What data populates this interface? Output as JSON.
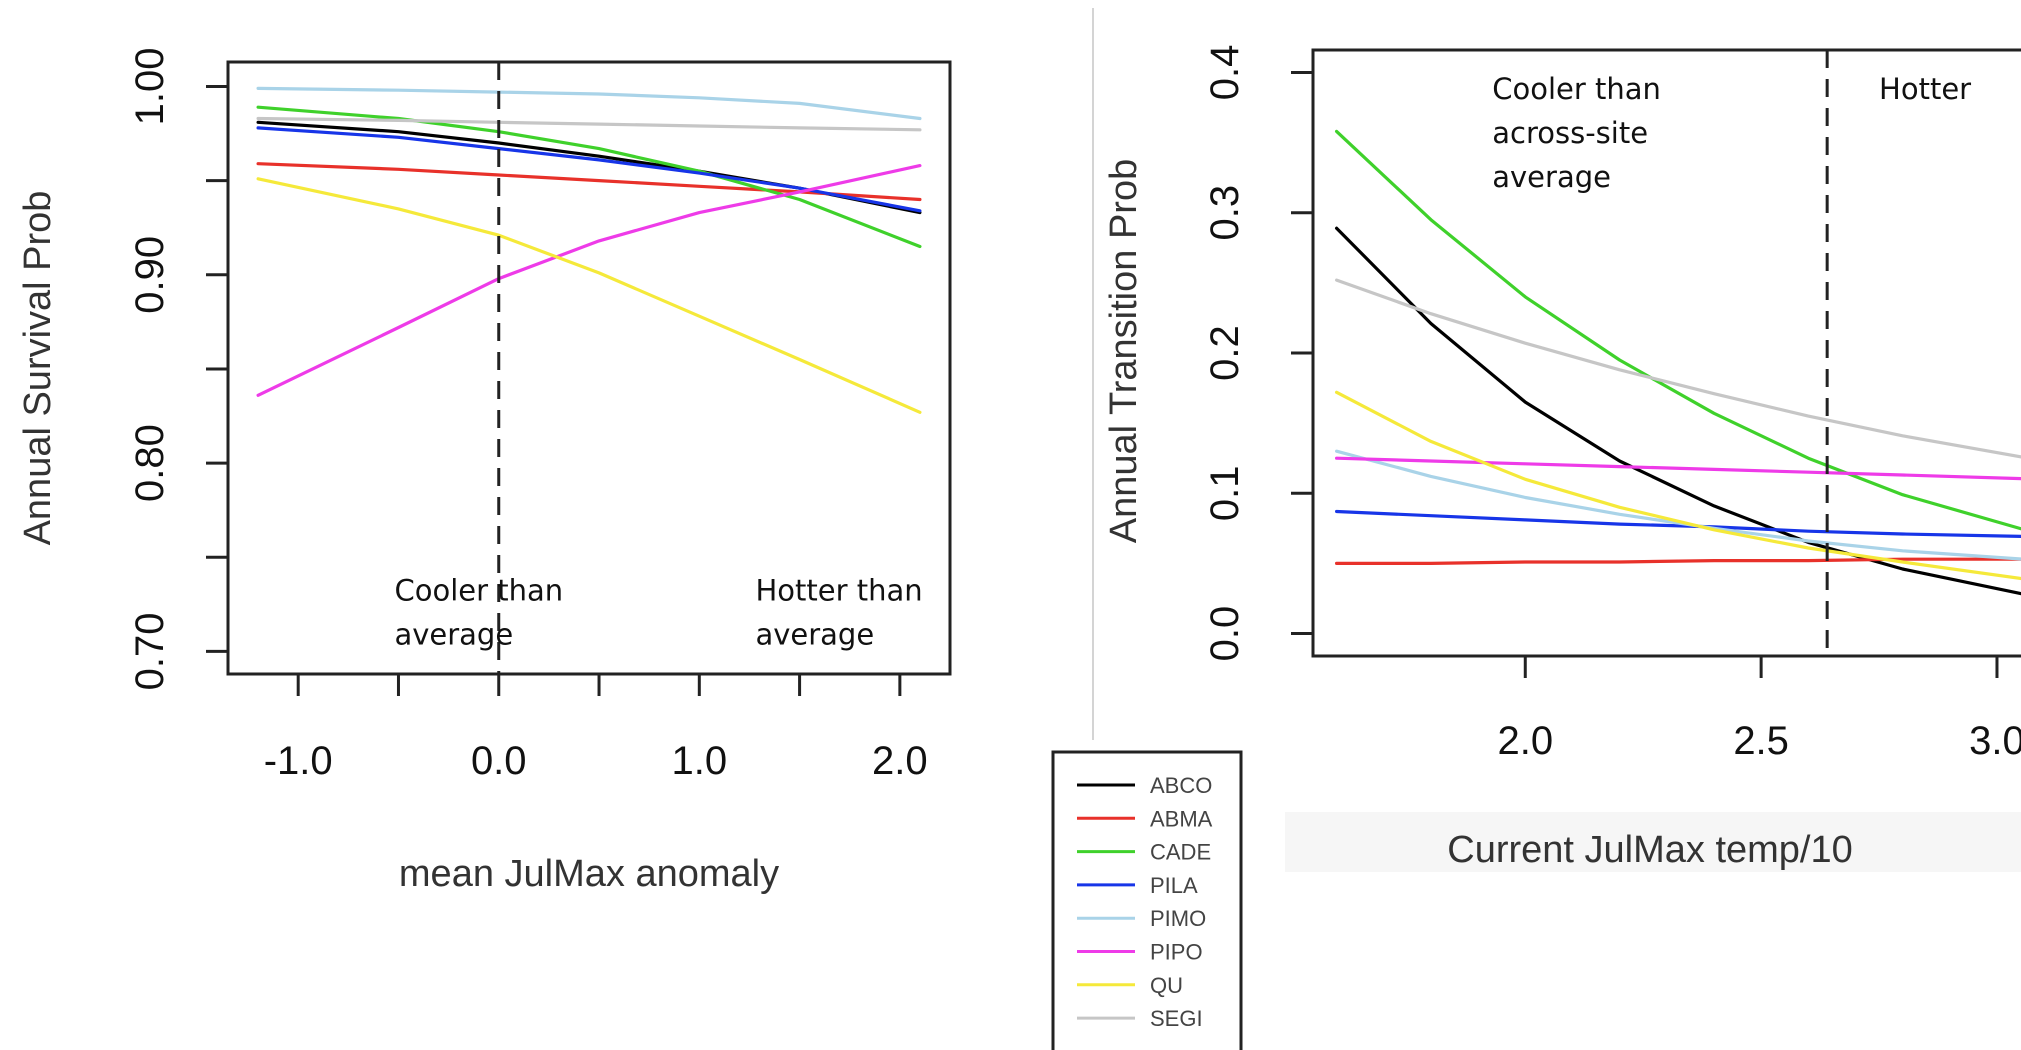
{
  "chart_data": [
    {
      "type": "line",
      "xlabel": "mean JulMax anomaly",
      "ylabel": "Annual Survival Prob",
      "xlim": [
        -1.35,
        2.25
      ],
      "ylim": [
        0.688,
        1.013
      ],
      "xticks": [
        -1.0,
        -0.5,
        0.0,
        0.5,
        1.0,
        1.5,
        2.0
      ],
      "xtick_labels": [
        "-1.0",
        "",
        "0.0",
        "",
        "1.0",
        "",
        "2.0"
      ],
      "yticks": [
        0.7,
        0.75,
        0.8,
        0.85,
        0.9,
        0.95,
        1.0
      ],
      "ytick_labels": [
        "0.70",
        "",
        "0.80",
        "",
        "0.90",
        "",
        "1.00"
      ],
      "grid": false,
      "reference_line": {
        "x": 0.0,
        "style": "dashed"
      },
      "annotations": [
        {
          "lines": [
            "Cooler than",
            "average"
          ],
          "x": -0.52,
          "y": 0.727
        },
        {
          "lines": [
            "Hotter than",
            "average"
          ],
          "x": 1.28,
          "y": 0.727
        }
      ],
      "series": [
        {
          "name": "ABCO",
          "color": "#000000",
          "x": [
            -1.2,
            -0.5,
            0.0,
            0.5,
            1.0,
            1.5,
            2.1
          ],
          "y": [
            0.981,
            0.976,
            0.97,
            0.963,
            0.955,
            0.946,
            0.933
          ]
        },
        {
          "name": "ABMA",
          "color": "#e8312a",
          "x": [
            -1.2,
            -0.5,
            0.0,
            0.5,
            1.0,
            1.5,
            2.1
          ],
          "y": [
            0.959,
            0.956,
            0.953,
            0.95,
            0.947,
            0.944,
            0.94
          ]
        },
        {
          "name": "CADE",
          "color": "#3fd12b",
          "x": [
            -1.2,
            -0.5,
            0.0,
            0.5,
            1.0,
            1.5,
            2.1
          ],
          "y": [
            0.989,
            0.983,
            0.976,
            0.967,
            0.955,
            0.94,
            0.915
          ]
        },
        {
          "name": "PILA",
          "color": "#1735e8",
          "x": [
            -1.2,
            -0.5,
            0.0,
            0.5,
            1.0,
            1.5,
            2.1
          ],
          "y": [
            0.978,
            0.973,
            0.967,
            0.961,
            0.954,
            0.946,
            0.934
          ]
        },
        {
          "name": "PIMO",
          "color": "#a9d3e8",
          "x": [
            -1.2,
            -0.5,
            0.0,
            0.5,
            1.0,
            1.5,
            2.1
          ],
          "y": [
            0.999,
            0.998,
            0.997,
            0.996,
            0.994,
            0.991,
            0.983
          ]
        },
        {
          "name": "PIPO",
          "color": "#ee3be8",
          "x": [
            -1.2,
            -0.5,
            0.0,
            0.5,
            1.0,
            1.5,
            2.1
          ],
          "y": [
            0.836,
            0.872,
            0.898,
            0.918,
            0.933,
            0.944,
            0.958
          ]
        },
        {
          "name": "QU",
          "color": "#f5e93a",
          "x": [
            -1.2,
            -0.5,
            0.0,
            0.5,
            1.0,
            1.5,
            2.1
          ],
          "y": [
            0.951,
            0.935,
            0.921,
            0.901,
            0.878,
            0.855,
            0.827
          ]
        },
        {
          "name": "SEGI",
          "color": "#c6c6c6",
          "x": [
            -1.2,
            -0.5,
            0.0,
            0.5,
            1.0,
            1.5,
            2.1
          ],
          "y": [
            0.983,
            0.982,
            0.981,
            0.98,
            0.979,
            0.978,
            0.977
          ]
        }
      ]
    },
    {
      "type": "line",
      "xlabel": "Current JulMax temp/10",
      "ylabel": "Annual Transition Prob",
      "xlim": [
        1.55,
        3.07
      ],
      "ylim": [
        -0.016,
        0.416
      ],
      "xticks": [
        2.0,
        2.5,
        3.0
      ],
      "xtick_labels": [
        "2.0",
        "2.5",
        "3.0"
      ],
      "yticks": [
        0.0,
        0.1,
        0.2,
        0.3,
        0.4
      ],
      "ytick_labels": [
        "0.0",
        "0.1",
        "0.2",
        "0.3",
        "0.4"
      ],
      "grid": false,
      "reference_line": {
        "x": 2.64,
        "style": "dashed"
      },
      "annotations": [
        {
          "lines": [
            "Cooler than",
            "across-site",
            "average"
          ],
          "x": 1.93,
          "y": 0.381
        },
        {
          "lines": [
            "Hotter"
          ],
          "x": 2.75,
          "y": 0.381
        }
      ],
      "series": [
        {
          "name": "ABCO",
          "color": "#000000",
          "x": [
            1.6,
            1.8,
            2.0,
            2.2,
            2.4,
            2.6,
            2.8,
            3.1
          ],
          "y": [
            0.289,
            0.221,
            0.165,
            0.123,
            0.091,
            0.065,
            0.046,
            0.025
          ]
        },
        {
          "name": "ABMA",
          "color": "#e8312a",
          "x": [
            1.6,
            1.8,
            2.0,
            2.2,
            2.4,
            2.6,
            2.8,
            3.1
          ],
          "y": [
            0.05,
            0.05,
            0.051,
            0.051,
            0.052,
            0.052,
            0.053,
            0.053
          ]
        },
        {
          "name": "CADE",
          "color": "#3fd12b",
          "x": [
            1.6,
            1.8,
            2.0,
            2.2,
            2.4,
            2.6,
            2.8,
            3.1
          ],
          "y": [
            0.358,
            0.295,
            0.24,
            0.195,
            0.157,
            0.125,
            0.099,
            0.07
          ]
        },
        {
          "name": "PILA",
          "color": "#1735e8",
          "x": [
            1.6,
            1.8,
            2.0,
            2.2,
            2.4,
            2.6,
            2.8,
            3.1
          ],
          "y": [
            0.087,
            0.084,
            0.081,
            0.078,
            0.076,
            0.073,
            0.071,
            0.069
          ]
        },
        {
          "name": "PIMO",
          "color": "#a9d3e8",
          "x": [
            1.6,
            1.8,
            2.0,
            2.2,
            2.4,
            2.6,
            2.8,
            3.1
          ],
          "y": [
            0.13,
            0.112,
            0.097,
            0.085,
            0.075,
            0.066,
            0.059,
            0.052
          ]
        },
        {
          "name": "PIPO",
          "color": "#ee3be8",
          "x": [
            1.6,
            1.8,
            2.0,
            2.2,
            2.4,
            2.6,
            2.8,
            3.1
          ],
          "y": [
            0.125,
            0.123,
            0.121,
            0.119,
            0.117,
            0.115,
            0.113,
            0.11
          ]
        },
        {
          "name": "QU",
          "color": "#f5e93a",
          "x": [
            1.6,
            1.8,
            2.0,
            2.2,
            2.4,
            2.6,
            2.8,
            3.1
          ],
          "y": [
            0.172,
            0.137,
            0.11,
            0.09,
            0.074,
            0.061,
            0.051,
            0.037
          ]
        },
        {
          "name": "SEGI",
          "color": "#c6c6c6",
          "x": [
            1.6,
            1.8,
            2.0,
            2.2,
            2.4,
            2.6,
            2.8,
            3.1
          ],
          "y": [
            0.252,
            0.228,
            0.207,
            0.188,
            0.171,
            0.155,
            0.141,
            0.123
          ]
        }
      ]
    }
  ],
  "legend": {
    "placement": "bottom-center",
    "entries": [
      {
        "label": "ABCO",
        "color": "#000000"
      },
      {
        "label": "ABMA",
        "color": "#e8312a"
      },
      {
        "label": "CADE",
        "color": "#3fd12b"
      },
      {
        "label": "PILA",
        "color": "#1735e8"
      },
      {
        "label": "PIMO",
        "color": "#a9d3e8"
      },
      {
        "label": "PIPO",
        "color": "#ee3be8"
      },
      {
        "label": "QU",
        "color": "#f5e93a"
      },
      {
        "label": "SEGI",
        "color": "#c6c6c6"
      }
    ]
  }
}
